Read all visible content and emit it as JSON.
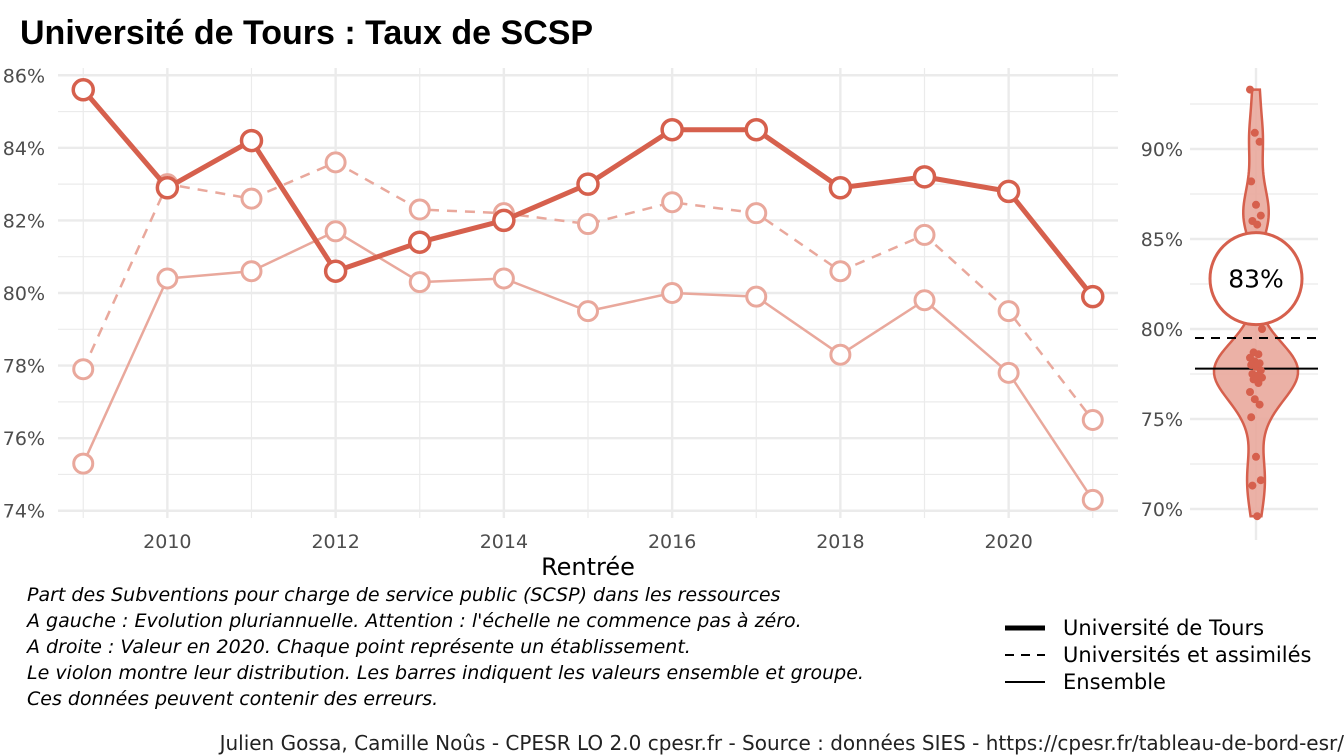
{
  "title": "Université de Tours  :  Taux de SCSP",
  "caption": [
    "Part des Subventions pour charge de service public (SCSP) dans les ressources",
    "A gauche : Evolution pluriannuelle. Attention : l'échelle ne commence pas à zéro.",
    "A droite : Valeur en 2020. Chaque point représente un établissement.",
    "Le violon montre leur distribution. Les barres indiquent les valeurs ensemble et groupe.",
    "Ces données peuvent contenir des erreurs."
  ],
  "legend": {
    "items": [
      "Université de Tours",
      "Universités et assimilés",
      "Ensemble"
    ]
  },
  "credit": "Julien Gossa, Camille Noûs - CPESR LO 2.0 cpesr.fr - Source : données SIES - https://cpesr.fr/tableau-de-bord-esr/",
  "colors": {
    "accent": "#d6604d",
    "light": "#e9a89c",
    "grid": "#ebebeb"
  },
  "chart_data": [
    {
      "type": "line",
      "xlabel": "Rentrée",
      "ylabel": "",
      "xlim": [
        2008.7,
        2021.3
      ],
      "ylim": [
        73.8,
        86.2
      ],
      "x_ticks": [
        2010,
        2012,
        2014,
        2016,
        2018,
        2020
      ],
      "x_tick_labels": [
        "2010",
        "2012",
        "2014",
        "2016",
        "2018",
        "2020"
      ],
      "y_ticks": [
        74,
        76,
        78,
        80,
        82,
        84,
        86
      ],
      "y_tick_labels": [
        "74%",
        "76%",
        "78%",
        "80%",
        "82%",
        "84%",
        "86%"
      ],
      "grid": true,
      "x": [
        2009,
        2010,
        2011,
        2012,
        2013,
        2014,
        2015,
        2016,
        2017,
        2018,
        2019,
        2020,
        2021
      ],
      "series": [
        {
          "name": "Université de Tours",
          "style": "bold",
          "values": [
            85.6,
            82.9,
            84.2,
            80.6,
            81.4,
            82.0,
            83.0,
            84.5,
            84.5,
            82.9,
            83.2,
            82.8,
            79.9
          ]
        },
        {
          "name": "Universités et assimilés",
          "style": "dashed",
          "values": [
            77.9,
            83.0,
            82.6,
            83.6,
            82.3,
            82.2,
            81.9,
            82.5,
            82.2,
            80.6,
            81.6,
            79.5,
            76.5
          ]
        },
        {
          "name": "Ensemble",
          "style": "thin",
          "values": [
            75.3,
            80.4,
            80.6,
            81.7,
            80.3,
            80.4,
            79.5,
            80.0,
            79.9,
            78.3,
            79.8,
            77.8,
            74.3
          ]
        }
      ]
    },
    {
      "type": "violin",
      "ylim": [
        69.5,
        94.5
      ],
      "y_ticks": [
        70,
        75,
        80,
        85,
        90
      ],
      "y_tick_labels": [
        "70%",
        "75%",
        "80%",
        "85%",
        "90%"
      ],
      "grid": true,
      "highlight_label": "83%",
      "highlight_value": 82.8,
      "group_value": 79.5,
      "overall_value": 77.8,
      "points": [
        93.3,
        90.9,
        90.4,
        88.2,
        86.9,
        86.3,
        86.0,
        85.8,
        80.0,
        78.7,
        78.6,
        78.4,
        78.2,
        78.1,
        78.0,
        77.9,
        77.7,
        77.5,
        77.4,
        77.3,
        77.2,
        77.0,
        76.5,
        76.1,
        75.8,
        75.1,
        72.9,
        71.6,
        71.3,
        69.6
      ]
    }
  ]
}
